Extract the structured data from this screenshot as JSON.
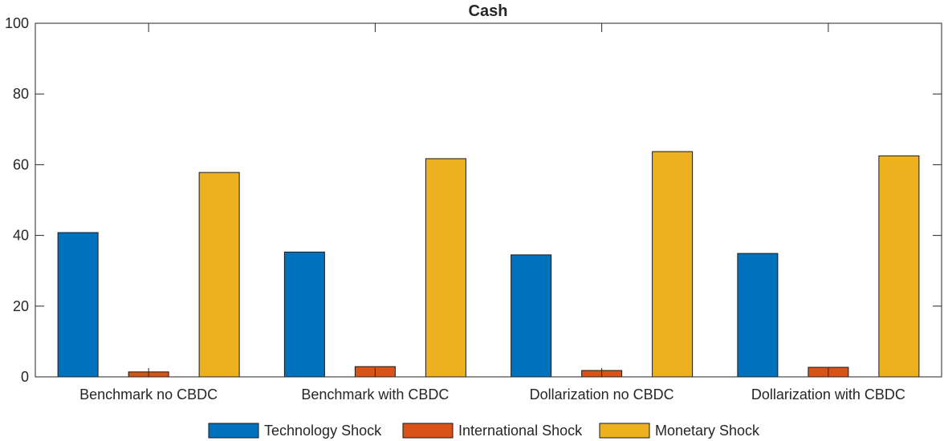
{
  "chart_data": {
    "type": "bar",
    "title": "Cash",
    "xlabel": "",
    "ylabel": "",
    "categories": [
      "Benchmark no CBDC",
      "Benchmark with CBDC",
      "Dollarization no CBDC",
      "Dollarization with CBDC"
    ],
    "series": [
      {
        "name": "Technology Shock",
        "values": [
          40.8,
          35.3,
          34.5,
          34.9
        ],
        "color": "#0072BD"
      },
      {
        "name": "International Shock",
        "values": [
          1.4,
          2.9,
          1.8,
          2.7
        ],
        "color": "#D95319"
      },
      {
        "name": "Monetary Shock",
        "values": [
          57.8,
          61.7,
          63.7,
          62.5
        ],
        "color": "#EDB120"
      }
    ],
    "ylim": [
      0,
      100
    ],
    "yticks": [
      "0",
      "20",
      "40",
      "60",
      "80",
      "100"
    ],
    "grid": false,
    "legend_position": "bottom"
  }
}
